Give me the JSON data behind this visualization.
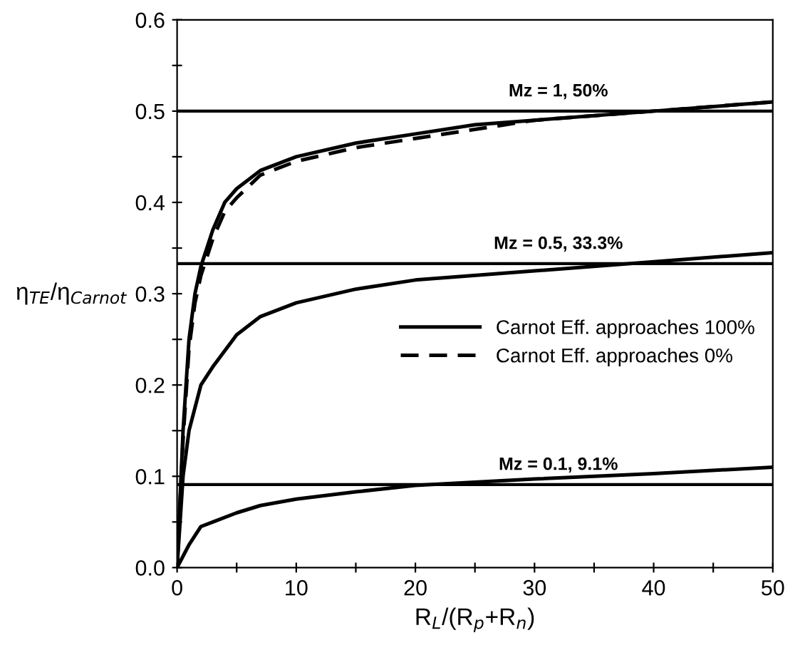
{
  "chart_data": {
    "type": "line",
    "xlabel": "R$_{L}$/(R$_{p}$+R$_{n}$)",
    "ylabel": "η$_{TE}$/η$_{Carnot}$",
    "xlim": [
      0,
      50
    ],
    "ylim": [
      0,
      0.6
    ],
    "xticks": [
      0,
      {
        "value": 5,
        "label": null
      },
      10,
      {
        "value": 15,
        "label": null
      },
      20,
      {
        "value": 25,
        "label": null
      },
      30,
      {
        "value": 35,
        "label": null
      },
      40,
      {
        "value": 45,
        "label": null
      },
      50
    ],
    "yticks": [
      {
        "value": 0,
        "label": "0.0"
      },
      {
        "value": 0.05,
        "label": null
      },
      0.1,
      {
        "value": 0.15,
        "label": null
      },
      0.2,
      {
        "value": 0.25,
        "label": null
      },
      0.3,
      {
        "value": 0.35,
        "label": null
      },
      0.4,
      {
        "value": 0.45,
        "label": null
      },
      0.5,
      {
        "value": 0.55,
        "label": null
      },
      0.6
    ],
    "grid": false,
    "legend": "center right",
    "marker": "none",
    "series": [
      {
        "name": "Carnot Eff. approaches 100%",
        "color": "#000000",
        "line_style": "solid",
        "x": [
          0,
          0.5,
          1,
          1.5,
          2,
          3,
          4,
          5,
          7,
          10,
          15,
          20,
          25,
          30,
          40,
          50
        ],
        "values": [
          0,
          0.15,
          0.25,
          0.3,
          0.33,
          0.37,
          0.4,
          0.415,
          0.435,
          0.45,
          0.465,
          0.475,
          0.485,
          0.49,
          0.5,
          0.51
        ]
      },
      {
        "name": "Carnot Eff. approaches 0%",
        "color": "#000000",
        "line_style": "dashed",
        "x": [
          0,
          0.5,
          1,
          1.5,
          2,
          3,
          4,
          5,
          7,
          10,
          15,
          20,
          25,
          30,
          40,
          50
        ],
        "values": [
          0,
          0.14,
          0.24,
          0.29,
          0.32,
          0.36,
          0.39,
          0.405,
          0.43,
          0.445,
          0.46,
          0.47,
          0.48,
          0.49,
          0.5,
          0.51
        ]
      },
      {
        "color": "#000000",
        "line_style": "solid",
        "x": [
          0,
          0.5,
          1,
          2,
          3,
          5,
          7,
          10,
          15,
          20,
          30,
          40,
          50
        ],
        "values": [
          0,
          0.1,
          0.15,
          0.2,
          0.22,
          0.255,
          0.275,
          0.29,
          0.305,
          0.315,
          0.325,
          0.335,
          0.345
        ]
      },
      {
        "color": "#000000",
        "line_style": "solid",
        "x": [
          0,
          1,
          2,
          3,
          5,
          7,
          10,
          15,
          20,
          30,
          40,
          50
        ],
        "values": [
          0,
          0.025,
          0.045,
          0.05,
          0.06,
          0.068,
          0.075,
          0.083,
          0.09,
          0.097,
          0.103,
          0.11
        ]
      }
    ],
    "ref_lines": [
      {
        "axis": "y",
        "value": 0.5,
        "label": "Mz = 1, 50%",
        "color": "#000000"
      },
      {
        "axis": "y",
        "value": 0.333,
        "label": "Mz = 0.5, 33.3%",
        "color": "#000000"
      },
      {
        "axis": "y",
        "value": 0.091,
        "label": "Mz = 0.1, 9.1%",
        "color": "#000000"
      }
    ]
  }
}
